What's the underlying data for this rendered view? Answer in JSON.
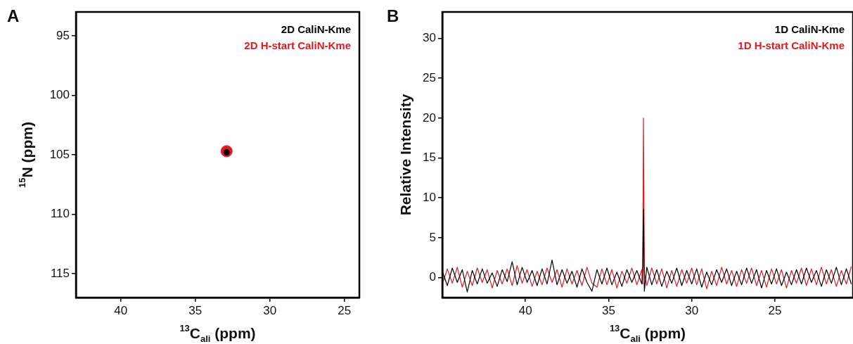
{
  "chart_data": [
    {
      "type": "scatter",
      "title": "A",
      "xlabel": "$^{13}$C$_{ali}$ (ppm)",
      "ylabel": "$^{15}$N (ppm)",
      "xlim": [
        43,
        24
      ],
      "xticks": [
        40,
        35,
        30,
        25
      ],
      "ylim": [
        117,
        93
      ],
      "yticks": [
        95,
        100,
        105,
        110,
        115
      ],
      "legend": "top right",
      "marker": "circle",
      "series": [
        {
          "name": "2D CaliN-Kme",
          "color": "#000000",
          "x": [
            32.9
          ],
          "values": [
            104.8
          ]
        },
        {
          "name": "2D H-start CaliN-Kme",
          "color": "#e3191c",
          "x": [
            32.9
          ],
          "values": [
            104.7
          ]
        }
      ]
    },
    {
      "type": "line",
      "title": "B",
      "xlabel": "$^{13}$C$_{ali}$ (ppm)",
      "ylabel": "Relative Intensity",
      "xlim": [
        45,
        20.3
      ],
      "xticks": [
        40,
        35,
        30,
        25
      ],
      "ylim": [
        -2.5,
        33.3
      ],
      "yticks": [
        0,
        5,
        10,
        15,
        20,
        25,
        30
      ],
      "legend": "top right",
      "marker": "none",
      "line_style": "solid",
      "x": [
        45.0,
        44.7,
        44.4,
        44.1,
        43.8,
        43.5,
        43.2,
        42.9,
        42.6,
        42.3,
        42.0,
        41.7,
        41.4,
        41.1,
        40.8,
        40.5,
        40.2,
        39.9,
        39.6,
        39.3,
        39.0,
        38.7,
        38.4,
        38.1,
        37.8,
        37.5,
        37.2,
        36.9,
        36.6,
        36.3,
        36.0,
        35.7,
        35.4,
        35.1,
        34.8,
        34.5,
        34.2,
        33.9,
        33.6,
        33.3,
        33.0,
        32.95,
        32.9,
        32.85,
        32.7,
        32.4,
        32.1,
        31.8,
        31.5,
        31.2,
        30.9,
        30.6,
        30.3,
        30.0,
        29.7,
        29.4,
        29.1,
        28.8,
        28.5,
        28.2,
        27.9,
        27.6,
        27.3,
        27.0,
        26.7,
        26.4,
        26.1,
        25.8,
        25.5,
        25.2,
        24.9,
        24.6,
        24.3,
        24.0,
        23.7,
        23.4,
        23.1,
        22.8,
        22.5,
        22.2,
        21.9,
        21.6,
        21.3,
        21.0,
        20.7,
        20.4
      ],
      "series": [
        {
          "name": "1D CaliN-Kme",
          "color": "#000000",
          "values": [
            0.8,
            -1.0,
            1.2,
            -0.6,
            1.0,
            -1.8,
            0.9,
            -0.8,
            1.1,
            -0.7,
            0.6,
            -1.1,
            1.0,
            -0.5,
            2.0,
            -0.9,
            1.3,
            -0.6,
            0.9,
            -1.0,
            1.1,
            -0.8,
            2.2,
            -0.9,
            1.0,
            -0.7,
            0.8,
            -1.2,
            1.1,
            -0.6,
            -1.7,
            1.0,
            -0.8,
            1.2,
            -0.9,
            0.7,
            -1.1,
            1.0,
            -0.6,
            0.9,
            -0.8,
            1.2,
            8.6,
            -1.7,
            1.3,
            -0.9,
            1.0,
            -1.1,
            0.8,
            -0.7,
            1.2,
            -1.0,
            0.9,
            -0.8,
            1.1,
            -1.2,
            0.7,
            -0.9,
            1.0,
            -0.6,
            1.1,
            -1.0,
            0.8,
            -0.9,
            1.2,
            -0.7,
            1.0,
            -1.3,
            0.9,
            -0.8,
            1.1,
            -1.0,
            0.7,
            -0.9,
            1.0,
            -0.8,
            1.2,
            -0.6,
            0.9,
            -1.1,
            1.0,
            -0.7,
            1.3,
            -0.9,
            1.1,
            -0.8
          ]
        },
        {
          "name": "1D H-start CaliN-Kme",
          "color": "#e3191c",
          "values": [
            -0.9,
            1.1,
            -0.7,
            1.3,
            -1.2,
            0.8,
            -1.0,
            1.2,
            -0.6,
            1.0,
            -1.3,
            0.9,
            -0.8,
            1.1,
            -1.0,
            1.5,
            -0.7,
            1.0,
            -1.1,
            0.8,
            -0.9,
            1.2,
            -0.6,
            1.0,
            -1.2,
            1.1,
            -0.8,
            0.9,
            -1.0,
            1.3,
            -0.7,
            -1.2,
            1.1,
            -0.9,
            1.0,
            -1.3,
            0.8,
            -0.7,
            1.2,
            -0.9,
            1.0,
            -0.8,
            20.0,
            0.6,
            -1.0,
            1.2,
            -0.8,
            1.1,
            -1.3,
            0.9,
            -1.1,
            1.0,
            -0.7,
            1.2,
            -0.9,
            1.1,
            -1.4,
            0.8,
            -1.0,
            1.3,
            -0.8,
            0.9,
            -1.1,
            1.0,
            -0.7,
            1.2,
            -1.0,
            0.9,
            -1.2,
            1.1,
            -0.8,
            1.0,
            -1.3,
            0.9,
            -0.7,
            1.2,
            -1.0,
            1.1,
            -0.9,
            1.3,
            -0.8,
            1.0,
            -1.1,
            0.9,
            -0.8,
            1.4
          ]
        }
      ]
    }
  ]
}
